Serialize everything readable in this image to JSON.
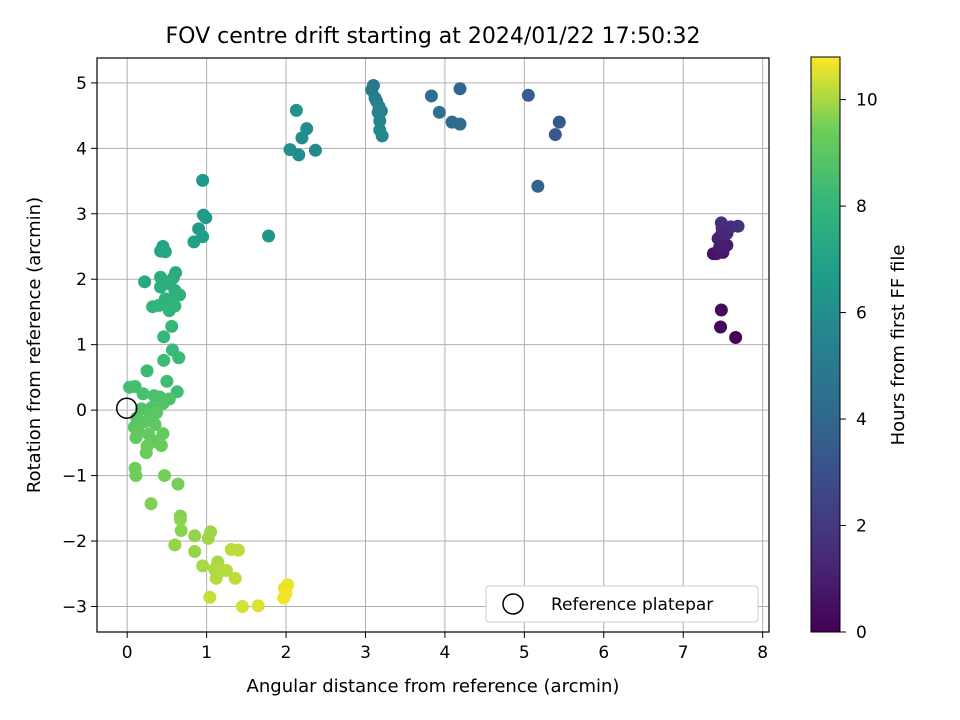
{
  "chart_data": {
    "type": "scatter",
    "title": "FOV centre drift starting at 2024/01/22 17:50:32",
    "xlabel": "Angular distance from reference (arcmin)",
    "ylabel": "Rotation from reference (arcmin)",
    "xlim": [
      -0.38,
      8.08
    ],
    "ylim": [
      -3.39,
      5.38
    ],
    "xticks": [
      0,
      1,
      2,
      3,
      4,
      5,
      6,
      7,
      8
    ],
    "yticks": [
      -3,
      -2,
      -1,
      0,
      1,
      2,
      3,
      4,
      5
    ],
    "grid": true,
    "colormap": "viridis",
    "colorbar": {
      "label": "Hours from first FF file",
      "range": [
        0,
        10.8
      ],
      "ticks": [
        0,
        2,
        4,
        6,
        8,
        10
      ]
    },
    "legend": {
      "position": "bottom-right",
      "entries": [
        "Reference platepar"
      ]
    },
    "reference_point": {
      "x": 0,
      "y": 0,
      "label": "Reference platepar"
    },
    "points": [
      {
        "x": 7.66,
        "y": 1.11,
        "t": 0.1
      },
      {
        "x": 7.47,
        "y": 1.27,
        "t": 0.2
      },
      {
        "x": 7.48,
        "y": 1.53,
        "t": 0.3
      },
      {
        "x": 7.38,
        "y": 2.39,
        "t": 0.6
      },
      {
        "x": 7.42,
        "y": 2.39,
        "t": 0.7
      },
      {
        "x": 7.5,
        "y": 2.41,
        "t": 0.8
      },
      {
        "x": 7.46,
        "y": 2.49,
        "t": 0.9
      },
      {
        "x": 7.55,
        "y": 2.52,
        "t": 1.0
      },
      {
        "x": 7.44,
        "y": 2.62,
        "t": 1.1
      },
      {
        "x": 7.48,
        "y": 2.68,
        "t": 1.2
      },
      {
        "x": 7.55,
        "y": 2.7,
        "t": 1.3
      },
      {
        "x": 7.49,
        "y": 2.78,
        "t": 1.4
      },
      {
        "x": 7.6,
        "y": 2.8,
        "t": 1.5
      },
      {
        "x": 7.48,
        "y": 2.86,
        "t": 1.6
      },
      {
        "x": 7.69,
        "y": 2.81,
        "t": 1.7
      },
      {
        "x": 5.44,
        "y": 4.4,
        "t": 3.3
      },
      {
        "x": 5.39,
        "y": 4.21,
        "t": 3.4
      },
      {
        "x": 5.05,
        "y": 4.81,
        "t": 3.6
      },
      {
        "x": 5.17,
        "y": 3.42,
        "t": 3.9
      },
      {
        "x": 4.19,
        "y": 4.91,
        "t": 4.1
      },
      {
        "x": 4.19,
        "y": 4.37,
        "t": 4.2
      },
      {
        "x": 4.09,
        "y": 4.4,
        "t": 4.3
      },
      {
        "x": 3.83,
        "y": 4.8,
        "t": 4.4
      },
      {
        "x": 3.93,
        "y": 4.55,
        "t": 4.5
      },
      {
        "x": 3.1,
        "y": 4.96,
        "t": 4.9
      },
      {
        "x": 3.08,
        "y": 4.89,
        "t": 5.0
      },
      {
        "x": 3.12,
        "y": 4.77,
        "t": 5.1
      },
      {
        "x": 3.14,
        "y": 4.72,
        "t": 5.2
      },
      {
        "x": 3.17,
        "y": 4.64,
        "t": 5.3
      },
      {
        "x": 3.16,
        "y": 4.55,
        "t": 5.4
      },
      {
        "x": 3.2,
        "y": 4.57,
        "t": 5.4
      },
      {
        "x": 3.18,
        "y": 4.42,
        "t": 5.5
      },
      {
        "x": 3.18,
        "y": 4.28,
        "t": 5.6
      },
      {
        "x": 3.21,
        "y": 4.19,
        "t": 5.7
      },
      {
        "x": 2.37,
        "y": 3.97,
        "t": 5.8
      },
      {
        "x": 2.26,
        "y": 4.3,
        "t": 5.9
      },
      {
        "x": 2.2,
        "y": 4.16,
        "t": 6.0
      },
      {
        "x": 2.16,
        "y": 3.9,
        "t": 6.0
      },
      {
        "x": 2.05,
        "y": 3.98,
        "t": 6.1
      },
      {
        "x": 2.13,
        "y": 4.58,
        "t": 6.2
      },
      {
        "x": 1.78,
        "y": 2.66,
        "t": 6.4
      },
      {
        "x": 0.95,
        "y": 3.51,
        "t": 6.5
      },
      {
        "x": 0.96,
        "y": 2.98,
        "t": 6.6
      },
      {
        "x": 0.99,
        "y": 2.94,
        "t": 6.6
      },
      {
        "x": 0.9,
        "y": 2.77,
        "t": 6.7
      },
      {
        "x": 0.95,
        "y": 2.65,
        "t": 6.8
      },
      {
        "x": 0.84,
        "y": 2.57,
        "t": 6.9
      },
      {
        "x": 0.45,
        "y": 2.5,
        "t": 7.1
      },
      {
        "x": 0.42,
        "y": 2.43,
        "t": 7.1
      },
      {
        "x": 0.48,
        "y": 2.42,
        "t": 7.2
      },
      {
        "x": 0.22,
        "y": 1.96,
        "t": 7.3
      },
      {
        "x": 0.61,
        "y": 2.1,
        "t": 7.4
      },
      {
        "x": 0.58,
        "y": 2.02,
        "t": 7.5
      },
      {
        "x": 0.42,
        "y": 2.03,
        "t": 7.5
      },
      {
        "x": 0.53,
        "y": 1.93,
        "t": 7.6
      },
      {
        "x": 0.42,
        "y": 1.88,
        "t": 7.6
      },
      {
        "x": 0.6,
        "y": 1.83,
        "t": 7.7
      },
      {
        "x": 0.66,
        "y": 1.76,
        "t": 7.7
      },
      {
        "x": 0.48,
        "y": 1.7,
        "t": 7.8
      },
      {
        "x": 0.55,
        "y": 1.66,
        "t": 7.8
      },
      {
        "x": 0.32,
        "y": 1.58,
        "t": 7.9
      },
      {
        "x": 0.4,
        "y": 1.6,
        "t": 7.9
      },
      {
        "x": 0.6,
        "y": 1.59,
        "t": 8.0
      },
      {
        "x": 0.53,
        "y": 1.52,
        "t": 8.0
      },
      {
        "x": 0.56,
        "y": 1.28,
        "t": 8.1
      },
      {
        "x": 0.46,
        "y": 1.12,
        "t": 8.1
      },
      {
        "x": 0.57,
        "y": 0.92,
        "t": 8.2
      },
      {
        "x": 0.65,
        "y": 0.8,
        "t": 8.2
      },
      {
        "x": 0.46,
        "y": 0.76,
        "t": 8.3
      },
      {
        "x": 0.25,
        "y": 0.6,
        "t": 8.3
      },
      {
        "x": 0.5,
        "y": 0.44,
        "t": 8.4
      },
      {
        "x": 0.63,
        "y": 0.28,
        "t": 8.4
      },
      {
        "x": 0.03,
        "y": 0.35,
        "t": 8.5
      },
      {
        "x": 0.1,
        "y": 0.36,
        "t": 8.5
      },
      {
        "x": 0.2,
        "y": 0.25,
        "t": 8.6
      },
      {
        "x": 0.34,
        "y": 0.22,
        "t": 8.6
      },
      {
        "x": 0.41,
        "y": 0.2,
        "t": 8.7
      },
      {
        "x": 0.53,
        "y": 0.17,
        "t": 8.7
      },
      {
        "x": 0.45,
        "y": 0.1,
        "t": 8.8
      },
      {
        "x": 0.31,
        "y": 0.04,
        "t": 8.8
      },
      {
        "x": 0.18,
        "y": 0.02,
        "t": 8.8
      },
      {
        "x": 0.12,
        "y": -0.12,
        "t": 8.9
      },
      {
        "x": 0.29,
        "y": -0.08,
        "t": 8.9
      },
      {
        "x": 0.37,
        "y": -0.04,
        "t": 9.0
      },
      {
        "x": 0.22,
        "y": -0.18,
        "t": 9.0
      },
      {
        "x": 0.09,
        "y": -0.26,
        "t": 9.0
      },
      {
        "x": 0.14,
        "y": -0.33,
        "t": 9.1
      },
      {
        "x": 0.35,
        "y": -0.22,
        "t": 9.1
      },
      {
        "x": 0.11,
        "y": -0.42,
        "t": 9.1
      },
      {
        "x": 0.27,
        "y": -0.37,
        "t": 9.2
      },
      {
        "x": 0.45,
        "y": -0.36,
        "t": 9.2
      },
      {
        "x": 0.36,
        "y": -0.48,
        "t": 9.2
      },
      {
        "x": 0.43,
        "y": -0.54,
        "t": 9.3
      },
      {
        "x": 0.25,
        "y": -0.55,
        "t": 9.3
      },
      {
        "x": 0.24,
        "y": -0.65,
        "t": 9.3
      },
      {
        "x": 0.1,
        "y": -0.89,
        "t": 9.4
      },
      {
        "x": 0.11,
        "y": -1.0,
        "t": 9.4
      },
      {
        "x": 0.47,
        "y": -1.0,
        "t": 9.5
      },
      {
        "x": 0.64,
        "y": -1.13,
        "t": 9.5
      },
      {
        "x": 0.3,
        "y": -1.43,
        "t": 9.6
      },
      {
        "x": 0.67,
        "y": -1.62,
        "t": 9.6
      },
      {
        "x": 0.67,
        "y": -1.67,
        "t": 9.7
      },
      {
        "x": 0.68,
        "y": -1.84,
        "t": 9.7
      },
      {
        "x": 0.6,
        "y": -2.06,
        "t": 9.8
      },
      {
        "x": 0.85,
        "y": -1.92,
        "t": 9.8
      },
      {
        "x": 0.85,
        "y": -2.16,
        "t": 9.8
      },
      {
        "x": 1.05,
        "y": -1.86,
        "t": 9.9
      },
      {
        "x": 1.02,
        "y": -1.96,
        "t": 9.9
      },
      {
        "x": 0.95,
        "y": -2.38,
        "t": 10.0
      },
      {
        "x": 1.1,
        "y": -2.43,
        "t": 10.0
      },
      {
        "x": 1.14,
        "y": -2.32,
        "t": 10.0
      },
      {
        "x": 1.17,
        "y": -2.46,
        "t": 10.1
      },
      {
        "x": 1.25,
        "y": -2.45,
        "t": 10.1
      },
      {
        "x": 1.12,
        "y": -2.57,
        "t": 10.1
      },
      {
        "x": 1.36,
        "y": -2.57,
        "t": 10.2
      },
      {
        "x": 1.31,
        "y": -2.13,
        "t": 10.2
      },
      {
        "x": 1.4,
        "y": -2.14,
        "t": 10.2
      },
      {
        "x": 1.04,
        "y": -2.86,
        "t": 10.3
      },
      {
        "x": 1.45,
        "y": -3.0,
        "t": 10.4
      },
      {
        "x": 1.65,
        "y": -2.99,
        "t": 10.5
      },
      {
        "x": 1.98,
        "y": -2.72,
        "t": 10.6
      },
      {
        "x": 2.02,
        "y": -2.67,
        "t": 10.6
      },
      {
        "x": 1.97,
        "y": -2.87,
        "t": 10.7
      },
      {
        "x": 2.0,
        "y": -2.8,
        "t": 10.7
      }
    ]
  }
}
